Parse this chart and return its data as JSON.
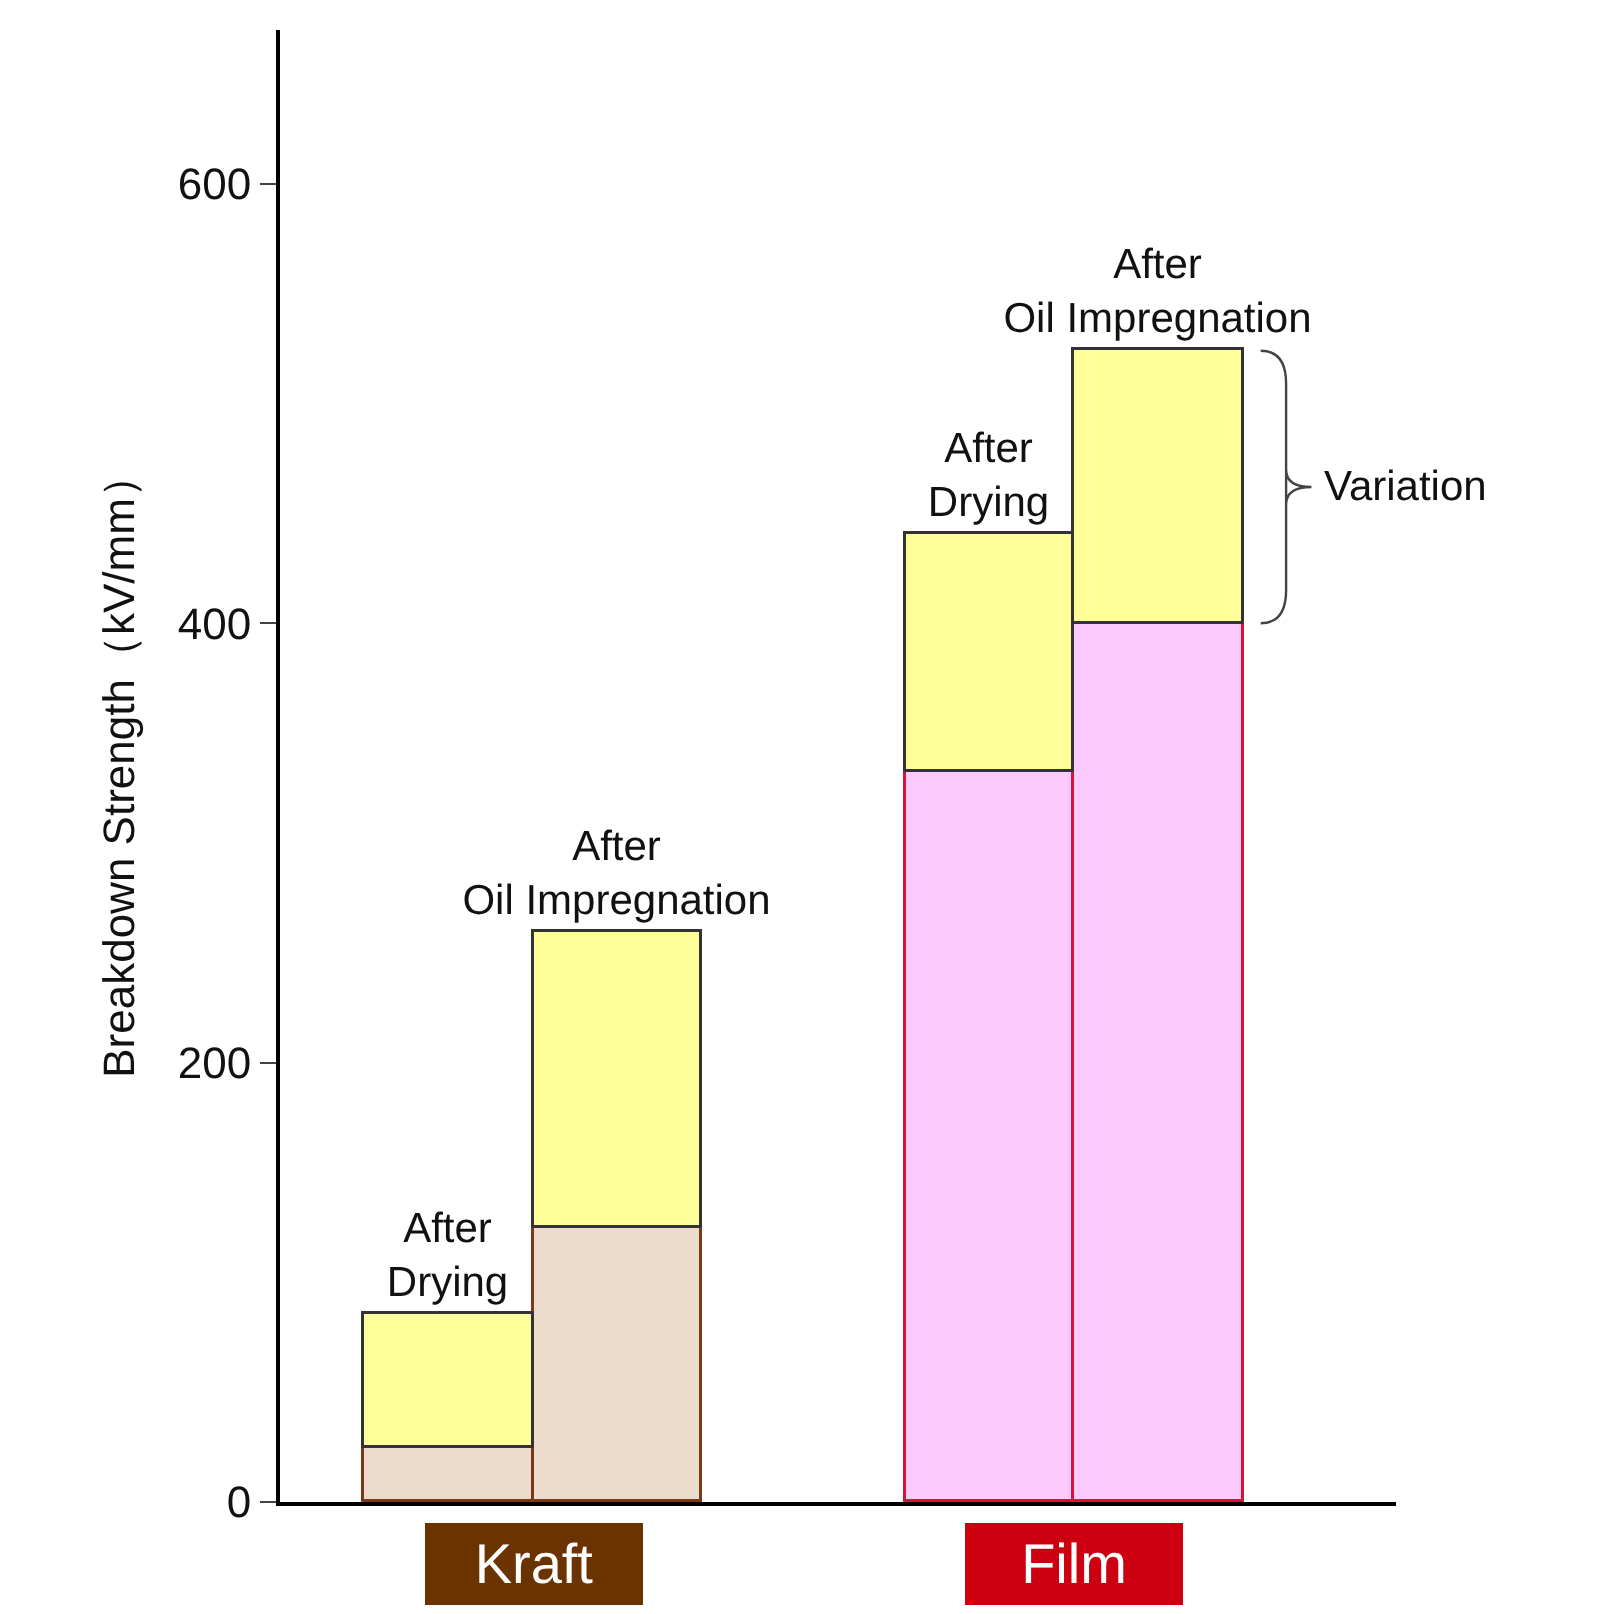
{
  "chart_data": {
    "type": "bar",
    "stacked": true,
    "ylabel": "Breakdown Strength（kV/mm）",
    "categories": [
      null,
      null,
      null,
      null
    ],
    "series": [
      {
        "colors": [
          "#eddccb",
          "#eddccb",
          "#fccafc",
          "#fccafc"
        ],
        "values": [
          25,
          125,
          332,
          400
        ]
      },
      {
        "color": "#ffff99",
        "values": [
          61,
          134,
          109,
          124
        ],
        "value_labels": [
          "After\nDrying",
          "After\nOil Impregnation",
          "After\nDrying",
          "After\nOil Impregnation"
        ]
      }
    ],
    "ylim": [
      0,
      670
    ],
    "yticks": [
      0,
      200,
      400,
      600
    ],
    "annotations": [
      "Kraft",
      "Film",
      "Variation"
    ]
  }
}
